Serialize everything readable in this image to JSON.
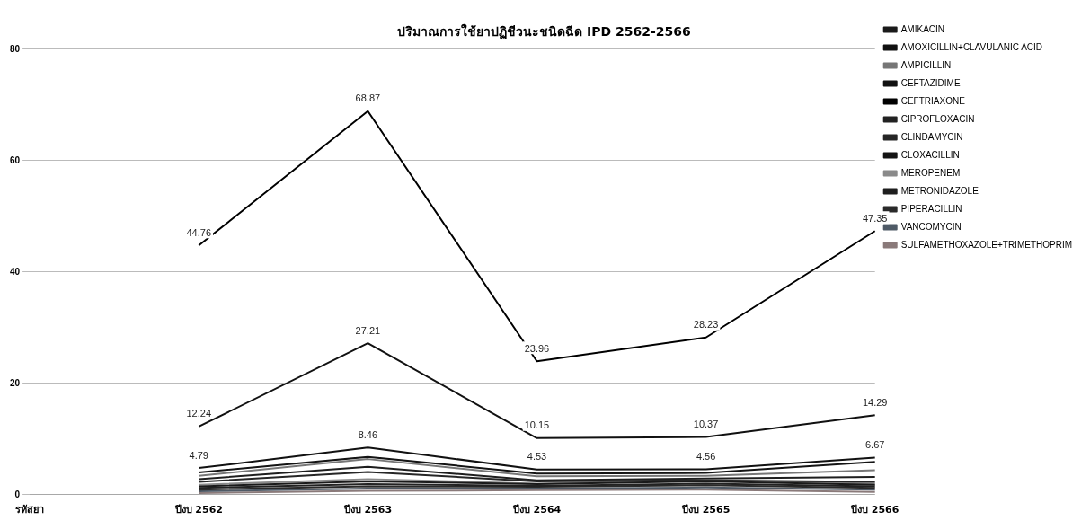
{
  "chart_data": {
    "type": "line",
    "title": "ปริมาณการใช้ยาปฏิชีวนะชนิดฉีด IPD 2562-2566",
    "categories": [
      "รหัสยา",
      "ปีงบ 2562",
      "ปีงบ 2563",
      "ปีงบ 2564",
      "ปีงบ 2565",
      "ปีงบ 2566"
    ],
    "ylim": [
      0,
      80
    ],
    "yticks": [
      0,
      20,
      40,
      60,
      80
    ],
    "grid": "y",
    "legend": "right",
    "marker": "none",
    "line_style": "solid",
    "series": [
      {
        "name": "AMIKACIN",
        "color": "#1a1a1a",
        "values": [
          null,
          1.5,
          2.4,
          1.9,
          2.4,
          1.8
        ]
      },
      {
        "name": "AMOXICILLIN+CLAVULANIC ACID",
        "color": "#111111",
        "values": [
          null,
          4.79,
          8.46,
          4.53,
          4.56,
          6.67
        ],
        "value_labels": [
          null,
          "4.79",
          "8.46",
          "4.53",
          "4.56",
          "6.67"
        ]
      },
      {
        "name": "AMPICILLIN",
        "color": "#777777",
        "values": [
          null,
          3.4,
          6.4,
          3.3,
          3.4,
          4.4
        ]
      },
      {
        "name": "CEFTAZIDIME",
        "color": "#111111",
        "values": [
          null,
          12.24,
          27.21,
          10.15,
          10.37,
          14.29
        ],
        "value_labels": [
          null,
          "12.24",
          "27.21",
          "10.15",
          "10.37",
          "14.29"
        ]
      },
      {
        "name": "CEFTRIAXONE",
        "color": "#000000",
        "values": [
          null,
          44.76,
          68.87,
          23.96,
          28.23,
          47.35
        ],
        "value_labels": [
          null,
          "44.76",
          "68.87",
          "23.96",
          "28.23",
          "47.35"
        ]
      },
      {
        "name": "CIPROFLOXACIN",
        "color": "#222222",
        "values": [
          null,
          1.2,
          1.9,
          1.6,
          2.0,
          1.5
        ]
      },
      {
        "name": "CLINDAMYCIN",
        "color": "#262626",
        "values": [
          null,
          2.3,
          4.1,
          2.4,
          2.6,
          2.3
        ]
      },
      {
        "name": "CLOXACILLIN",
        "color": "#141414",
        "values": [
          null,
          4.0,
          6.8,
          3.8,
          3.9,
          5.9
        ]
      },
      {
        "name": "MEROPENEM",
        "color": "#8a8a8a",
        "values": [
          null,
          1.8,
          2.8,
          2.0,
          2.6,
          2.0
        ]
      },
      {
        "name": "METRONIDAZOLE",
        "color": "#1e1e1e",
        "values": [
          null,
          2.8,
          5.0,
          2.6,
          2.9,
          3.2
        ]
      },
      {
        "name": "PIPERACILLIN",
        "color": "#2a2a2a",
        "values": [
          null,
          0.9,
          1.5,
          1.4,
          1.7,
          1.2
        ]
      },
      {
        "name": "VANCOMYCIN",
        "color": "#4f5a66",
        "values": [
          null,
          0.6,
          1.1,
          1.1,
          1.3,
          0.9
        ]
      },
      {
        "name": "SULFAMETHOXAZOLE+TRIMETHOPRIM",
        "color": "#8a7a7a",
        "values": [
          null,
          0.3,
          0.7,
          0.8,
          0.9,
          0.5
        ]
      }
    ]
  }
}
